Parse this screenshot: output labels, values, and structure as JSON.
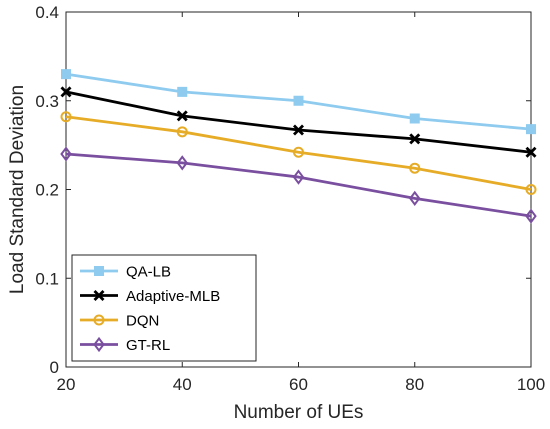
{
  "chart_data": {
    "type": "line",
    "title": "",
    "xlabel": "Number of UEs",
    "ylabel": "Load Standard Deviation",
    "x": [
      20,
      40,
      60,
      80,
      100
    ],
    "xlim": [
      20,
      100
    ],
    "ylim": [
      0,
      0.4
    ],
    "xticks": [
      "20",
      "40",
      "60",
      "80",
      "100"
    ],
    "yticks": [
      "0",
      "0.1",
      "0.2",
      "0.3",
      "0.4"
    ],
    "grid": false,
    "legend_position": "bottom-left",
    "series": [
      {
        "name": "QA-LB",
        "values": [
          0.33,
          0.31,
          0.3,
          0.28,
          0.268
        ],
        "color": "#8ecbef",
        "marker": "square"
      },
      {
        "name": "Adaptive-MLB",
        "values": [
          0.31,
          0.283,
          0.267,
          0.257,
          0.242
        ],
        "color": "#000000",
        "marker": "x"
      },
      {
        "name": "DQN",
        "values": [
          0.282,
          0.265,
          0.242,
          0.224,
          0.2
        ],
        "color": "#e6ac27",
        "marker": "circle"
      },
      {
        "name": "GT-RL",
        "values": [
          0.24,
          0.23,
          0.214,
          0.19,
          0.17
        ],
        "color": "#7a4fa0",
        "marker": "diamond"
      }
    ]
  }
}
